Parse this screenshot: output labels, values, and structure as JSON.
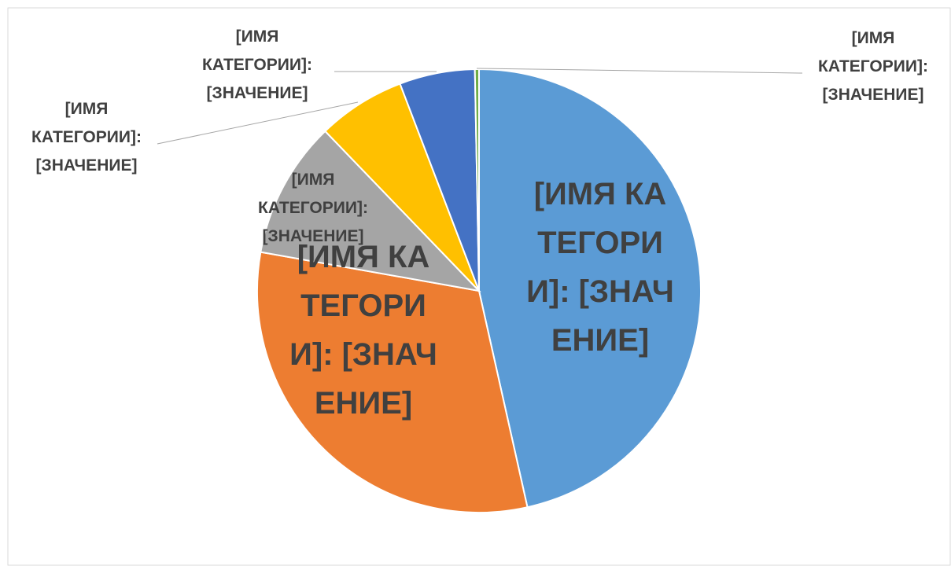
{
  "chart_data": {
    "type": "pie",
    "labels": [
      "[ИМЯ КАТЕГОРИИ]: [ЗНАЧЕНИЕ]",
      "[ИМЯ КАТЕГОРИИ]: [ЗНАЧЕНИЕ]",
      "[ИМЯ КАТЕГОРИИ]: [ЗНАЧЕНИЕ]",
      "[ИМЯ КАТЕГОРИИ]: [ЗНАЧЕНИЕ]",
      "[ИМЯ КАТЕГОРИИ]: [ЗНАЧЕНИЕ]",
      "[ИМЯ КАТЕГОРИИ]: [ЗНАЧЕНИЕ]"
    ],
    "values": [
      46.5,
      31.3,
      10,
      6.4,
      5.5,
      0.3
    ],
    "colors": [
      "#5b9bd5",
      "#ed7d31",
      "#a5a5a5",
      "#ffc000",
      "#4472c4",
      "#70ad47"
    ]
  }
}
